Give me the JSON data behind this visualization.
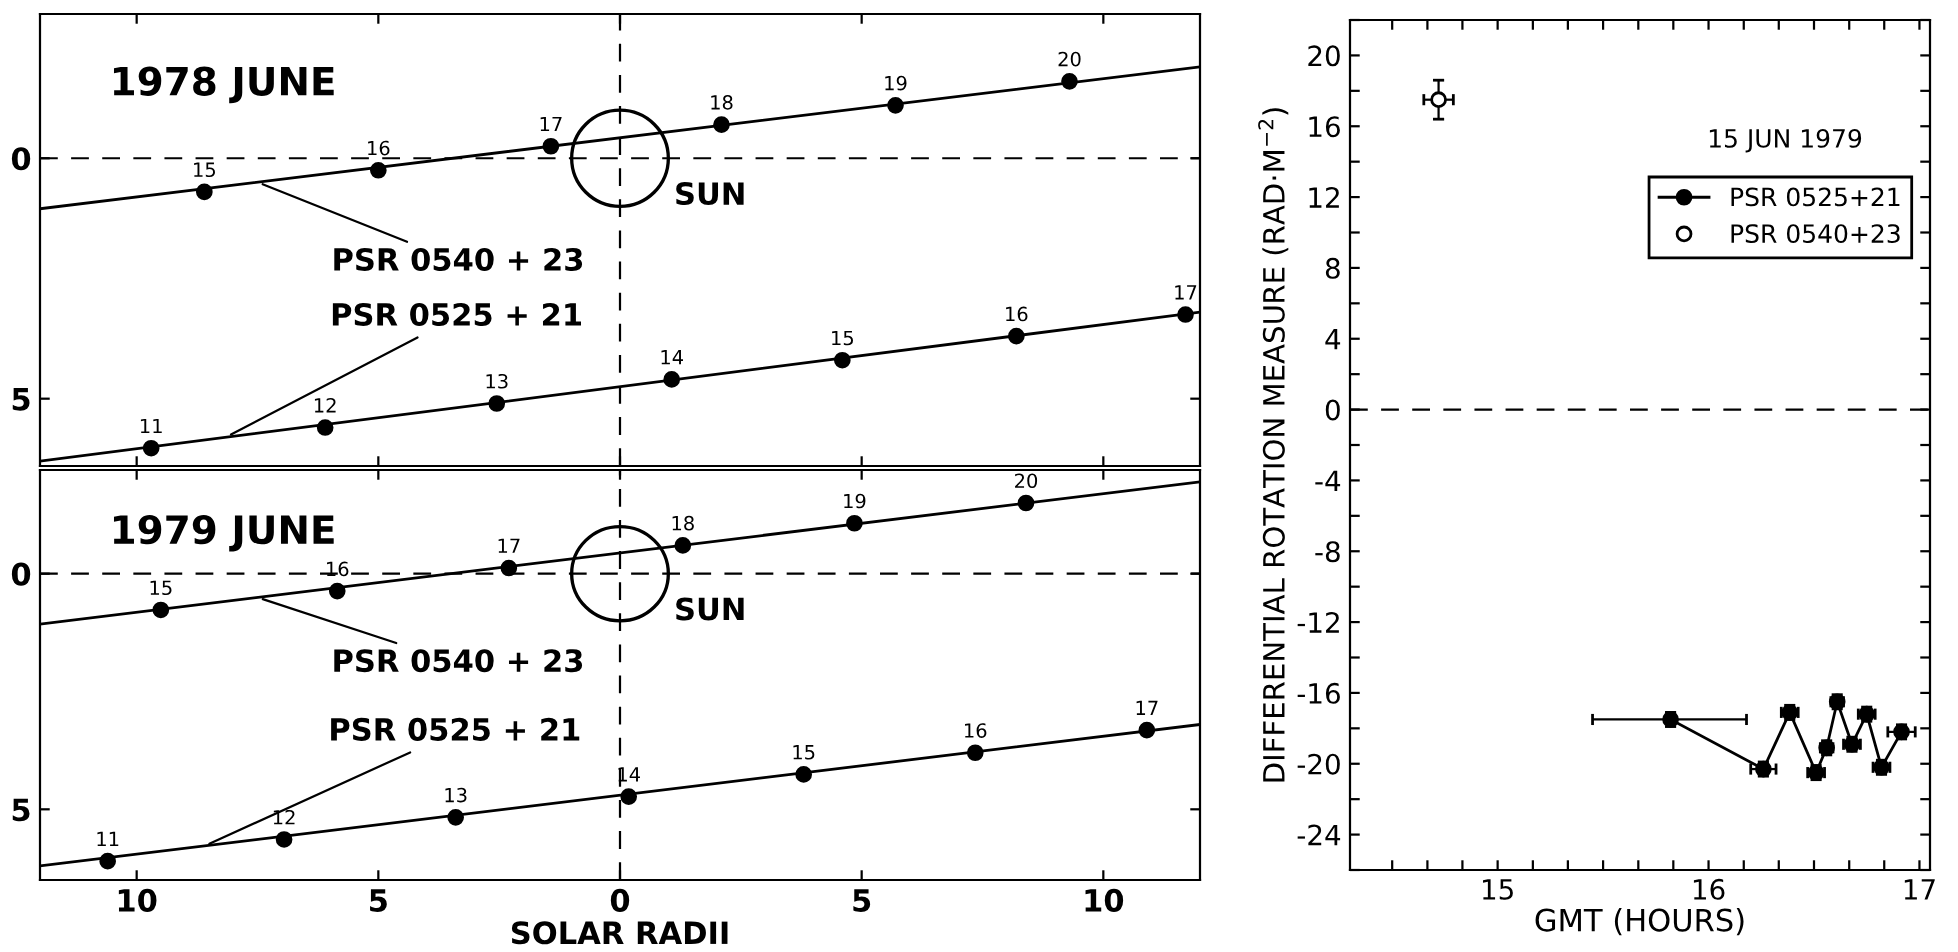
{
  "chart_data": [
    {
      "type": "line",
      "annotations": [
        "1978 JUNE",
        {
          "text": "PSR 0540 + 23",
          "x": 7.5,
          "y": 0.497
        },
        {
          "text": "PSR 0525 + 21",
          "x": 8.15,
          "y": 5.8
        },
        {
          "text": "SUN",
          "x": 0,
          "y": 0
        },
        {
          "text": "15",
          "x": 8.6,
          "y": 0.7
        },
        {
          "text": "16",
          "x": 5.0,
          "y": 0.25
        },
        {
          "text": "17",
          "x": 1.43,
          "y": -0.25
        },
        {
          "text": "18",
          "x": -2.1,
          "y": -0.7
        },
        {
          "text": "19",
          "x": -5.7,
          "y": -1.1
        },
        {
          "text": "20",
          "x": -9.3,
          "y": -1.6
        },
        {
          "text": "11",
          "x": 9.7,
          "y": 6.03
        },
        {
          "text": "12",
          "x": 6.1,
          "y": 5.6
        },
        {
          "text": "13",
          "x": 2.55,
          "y": 5.1
        },
        {
          "text": "14",
          "x": -1.07,
          "y": 4.6
        },
        {
          "text": "15",
          "x": -4.6,
          "y": 4.2
        },
        {
          "text": "16",
          "x": -8.2,
          "y": 3.7
        },
        {
          "text": "17",
          "x": -11.7,
          "y": 3.25
        }
      ],
      "xlim": [
        12,
        -12
      ],
      "xticks": [
        {
          "value": 10,
          "label": null
        },
        {
          "value": 5,
          "label": null
        },
        {
          "value": 0,
          "label": null
        },
        {
          "value": -5,
          "label": null
        },
        {
          "value": -10,
          "label": null
        }
      ],
      "ylim": [
        6.4,
        -3.0
      ],
      "yticks": [
        0,
        5
      ],
      "tick_labels": "y",
      "grid": false,
      "ref_lines": [
        {
          "axis": "x",
          "value": 0,
          "line_style": "dashed"
        },
        {
          "axis": "y",
          "value": 0,
          "line_style": "dashed"
        }
      ],
      "series": [
        {
          "color": "#000000",
          "x": [
            12,
            -12
          ],
          "values": [
            1.05,
            -1.9
          ]
        },
        {
          "color": "#000000",
          "x": [
            12,
            -12
          ],
          "values": [
            6.3,
            3.2
          ]
        },
        {
          "type": "scatter",
          "color": "#000000",
          "marker": "circle",
          "x": [
            8.6,
            5.0,
            1.43,
            -2.1,
            -5.7,
            -9.3
          ],
          "values": [
            0.7,
            0.25,
            -0.25,
            -0.7,
            -1.1,
            -1.6
          ]
        },
        {
          "type": "scatter",
          "color": "#000000",
          "marker": "circle",
          "x": [
            9.7,
            6.1,
            2.55,
            -1.07,
            -4.6,
            -8.2,
            -11.7
          ],
          "values": [
            6.03,
            5.6,
            5.1,
            4.6,
            4.2,
            3.7,
            3.25
          ]
        }
      ]
    },
    {
      "type": "line",
      "annotations": [
        "1979 JUNE",
        {
          "text": "PSR 0540 + 23",
          "x": 7.5,
          "y": 0.503
        },
        {
          "text": "PSR 0525 + 21",
          "x": 8.6,
          "y": 5.78
        },
        {
          "text": "SUN",
          "x": 0,
          "y": 0
        },
        {
          "text": "15",
          "x": 9.5,
          "y": 0.77
        },
        {
          "text": "16",
          "x": 5.85,
          "y": 0.37
        },
        {
          "text": "17",
          "x": 2.3,
          "y": -0.12
        },
        {
          "text": "18",
          "x": -1.3,
          "y": -0.6
        },
        {
          "text": "19",
          "x": -4.85,
          "y": -1.07
        },
        {
          "text": "20",
          "x": -8.4,
          "y": -1.5
        },
        {
          "text": "11",
          "x": 10.6,
          "y": 6.1
        },
        {
          "text": "12",
          "x": 6.95,
          "y": 5.64
        },
        {
          "text": "13",
          "x": 3.4,
          "y": 5.17
        },
        {
          "text": "14",
          "x": -0.18,
          "y": 4.73
        },
        {
          "text": "15",
          "x": -3.8,
          "y": 4.26
        },
        {
          "text": "16",
          "x": -7.35,
          "y": 3.8
        },
        {
          "text": "17",
          "x": -10.9,
          "y": 3.32
        }
      ],
      "xlabel": "SOLAR RADII",
      "xlim": [
        12,
        -12
      ],
      "xticks": [
        {
          "value": 10,
          "label": "10"
        },
        {
          "value": 5,
          "label": "5"
        },
        {
          "value": 0,
          "label": "0"
        },
        {
          "value": -5,
          "label": "5"
        },
        {
          "value": -10,
          "label": "10"
        }
      ],
      "ylim": [
        6.5,
        -2.2
      ],
      "yticks": [
        0,
        5
      ],
      "grid": false,
      "ref_lines": [
        {
          "axis": "x",
          "value": 0,
          "line_style": "dashed"
        },
        {
          "axis": "y",
          "value": 0,
          "line_style": "dashed"
        }
      ],
      "series": [
        {
          "color": "#000000",
          "x": [
            12,
            -12
          ],
          "values": [
            1.07,
            -1.95
          ]
        },
        {
          "color": "#000000",
          "x": [
            12,
            -12
          ],
          "values": [
            6.2,
            3.2
          ]
        },
        {
          "type": "scatter",
          "color": "#000000",
          "marker": "circle",
          "x": [
            9.5,
            5.85,
            2.3,
            -1.3,
            -4.85,
            -8.4
          ],
          "values": [
            0.77,
            0.37,
            -0.12,
            -0.6,
            -1.07,
            -1.5
          ]
        },
        {
          "type": "scatter",
          "color": "#000000",
          "marker": "circle",
          "x": [
            10.6,
            6.95,
            3.4,
            -0.18,
            -3.8,
            -7.35,
            -10.9
          ],
          "values": [
            6.1,
            5.64,
            5.17,
            4.73,
            4.26,
            3.8,
            3.32
          ]
        }
      ]
    },
    {
      "type": "line",
      "xlabel": "GMT (HOURS)",
      "ylabel": "DIFFERENTIAL ROTATION MEASURE (RAD·M$^{−2}$)",
      "annotations": [
        "15 JUN 1979"
      ],
      "xlim": [
        14.3,
        17.05
      ],
      "xticks": [
        {
          "value": 14.5,
          "label": null
        },
        {
          "value": 14.667,
          "label": null
        },
        {
          "value": 14.833,
          "label": null
        },
        15,
        {
          "value": 15.167,
          "label": null
        },
        {
          "value": 15.333,
          "label": null
        },
        {
          "value": 15.5,
          "label": null
        },
        {
          "value": 15.667,
          "label": null
        },
        {
          "value": 15.833,
          "label": null
        },
        16,
        {
          "value": 16.167,
          "label": null
        },
        {
          "value": 16.333,
          "label": null
        },
        {
          "value": 16.5,
          "label": null
        },
        {
          "value": 16.667,
          "label": null
        },
        {
          "value": 16.833,
          "label": null
        },
        17
      ],
      "ylim": [
        -26,
        22
      ],
      "yticks": [
        {
          "value": -26,
          "label": null
        },
        -24,
        {
          "value": -22,
          "label": null
        },
        -20,
        {
          "value": -18,
          "label": null
        },
        -16,
        {
          "value": -14,
          "label": null
        },
        -12,
        {
          "value": -10,
          "label": null
        },
        -8,
        {
          "value": -6,
          "label": null
        },
        -4,
        {
          "value": -2,
          "label": null
        },
        0,
        {
          "value": 2,
          "label": null
        },
        4,
        {
          "value": 6,
          "label": null
        },
        8,
        {
          "value": 10,
          "label": null
        },
        12,
        {
          "value": 14,
          "label": null
        },
        16,
        {
          "value": 18,
          "label": null
        },
        20,
        {
          "value": 22,
          "label": null
        }
      ],
      "grid": false,
      "legend": "top right",
      "ref_lines": [
        {
          "axis": "y",
          "value": 0,
          "line_style": "dashed"
        }
      ],
      "series": [
        {
          "name": "PSR 0525+21",
          "color": "#000000",
          "marker": "circle",
          "x": [
            15.82,
            16.26,
            16.385,
            16.51,
            16.56,
            16.61,
            16.68,
            16.75,
            16.82,
            16.915
          ],
          "values": [
            -17.5,
            -20.3,
            -17.1,
            -20.5,
            -19.1,
            -16.5,
            -18.9,
            -17.2,
            -20.2,
            -18.2
          ],
          "errors": [
            0.4,
            0.4,
            0.4,
            0.4,
            0.4,
            0.4,
            0.4,
            0.4,
            0.4,
            0.4
          ],
          "xerrors": [
            [
              15.45,
              16.18
            ],
            0.06,
            0.04,
            0.04,
            0.03,
            0.03,
            0.04,
            0.04,
            0.04,
            0.065
          ]
        },
        {
          "type": "scatter",
          "name": "PSR 0540+23",
          "color": "#ffffff",
          "marker": "circle",
          "x": [
            14.72
          ],
          "values": [
            17.5
          ],
          "errors": [
            1.1
          ],
          "xerrors": [
            0.07
          ]
        }
      ]
    }
  ]
}
